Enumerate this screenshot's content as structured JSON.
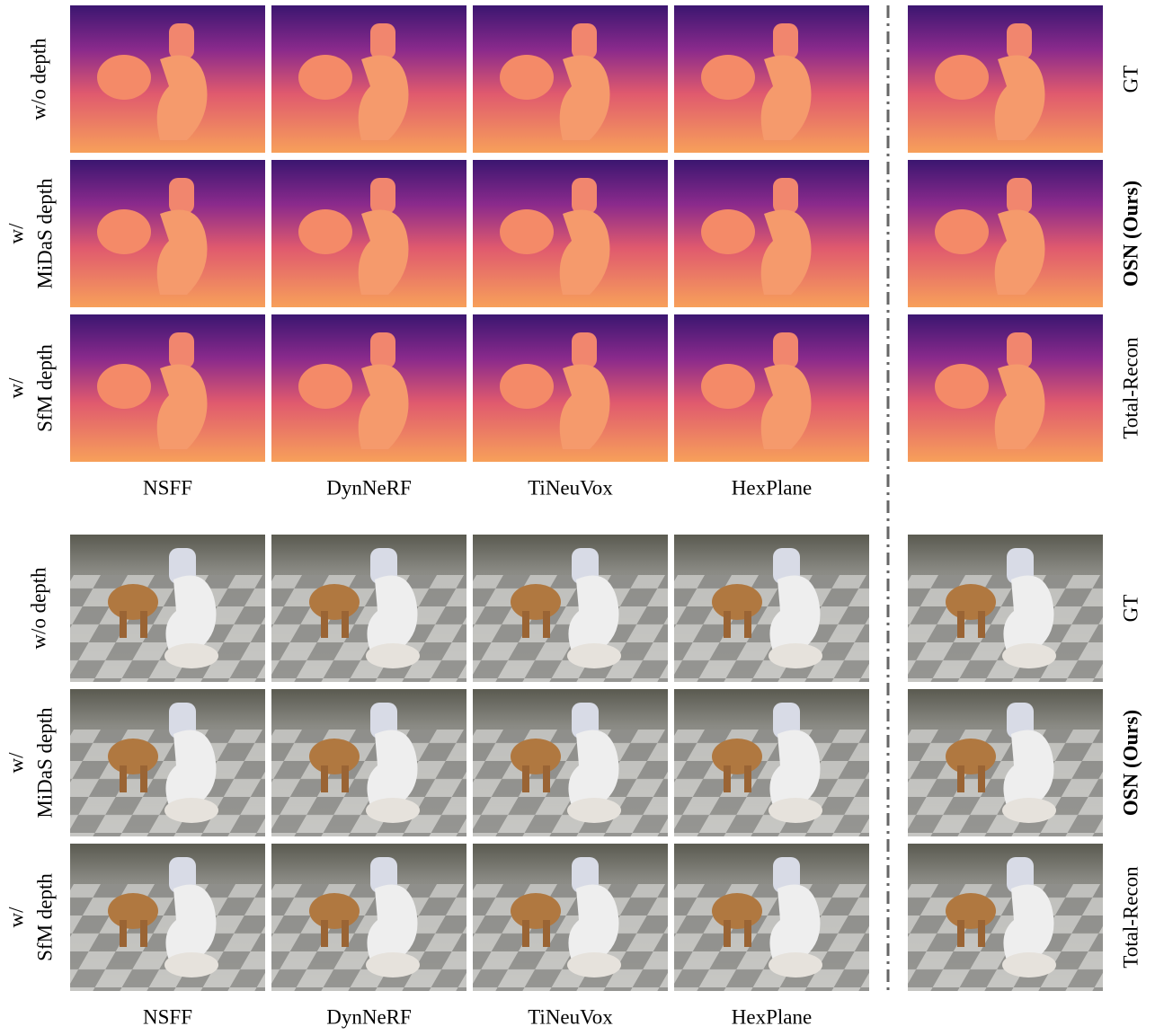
{
  "sections": [
    {
      "kind": "depth",
      "row_labels": [
        [
          "w/o depth"
        ],
        [
          "w/",
          "MiDaS depth"
        ],
        [
          "w/",
          "SfM depth"
        ]
      ],
      "column_labels": [
        "NSFF",
        "DynNeRF",
        "TiNeuVox",
        "HexPlane"
      ],
      "reference_labels": [
        "GT",
        "OSN (Ours)",
        "Total-Recon"
      ]
    },
    {
      "kind": "rgb",
      "row_labels": [
        [
          "w/o depth"
        ],
        [
          "w/",
          "MiDaS depth"
        ],
        [
          "w/",
          "SfM depth"
        ]
      ],
      "column_labels": [
        "NSFF",
        "DynNeRF",
        "TiNeuVox",
        "HexPlane"
      ],
      "reference_labels": [
        "GT",
        "OSN (Ours)",
        "Total-Recon"
      ]
    }
  ]
}
